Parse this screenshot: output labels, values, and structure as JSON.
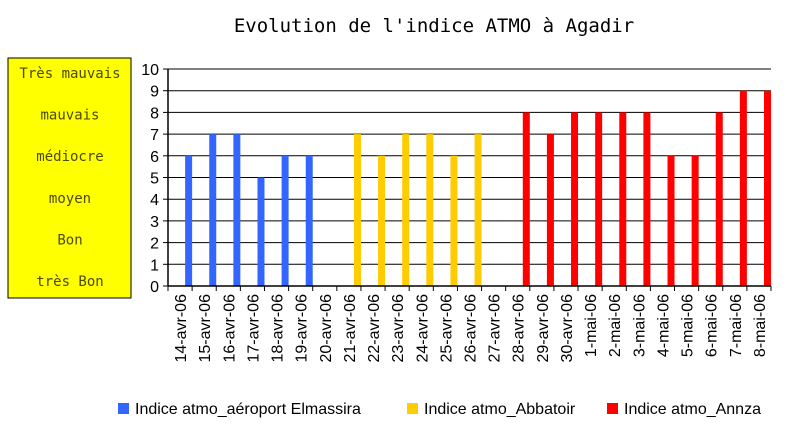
{
  "chart_data": {
    "type": "bar",
    "title": "Evolution de l'indice ATMO à Agadir",
    "xlabel": "",
    "ylabel": "",
    "ylim": [
      0,
      10
    ],
    "yticks": [
      "0",
      "1",
      "2",
      "3",
      "4",
      "5",
      "6",
      "7",
      "8",
      "9",
      "10"
    ],
    "grid": true,
    "legend_position": "bottom",
    "quality_scale": [
      "Très mauvais",
      "mauvais",
      "médiocre",
      "moyen",
      "Bon",
      "très Bon"
    ],
    "quality_box_color": "#ffff00",
    "categories": [
      "14-avr-06",
      "15-avr-06",
      "16-avr-06",
      "17-avr-06",
      "18-avr-06",
      "19-avr-06",
      "20-avr-06",
      "21-avr-06",
      "22-avr-06",
      "23-avr-06",
      "24-avr-06",
      "25-avr-06",
      "26-avr-06",
      "27-avr-06",
      "28-avr-06",
      "29-avr-06",
      "30-avr-06",
      "1-mai-06",
      "2-mai-06",
      "3-mai-06",
      "4-mai-06",
      "5-mai-06",
      "6-mai-06",
      "7-mai-06",
      "8-mai-06"
    ],
    "series": [
      {
        "name": "Indice atmo_aéroport Elmassira",
        "color": "#3366ff",
        "values": [
          6,
          7,
          7,
          5,
          6,
          6,
          null,
          null,
          null,
          null,
          null,
          null,
          null,
          null,
          null,
          null,
          null,
          null,
          null,
          null,
          null,
          null,
          null,
          null,
          null
        ]
      },
      {
        "name": "Indice atmo_Abbatoir",
        "color": "#ffcc00",
        "values": [
          null,
          null,
          null,
          null,
          null,
          null,
          null,
          7,
          6,
          7,
          7,
          6,
          7,
          null,
          null,
          null,
          null,
          null,
          null,
          null,
          null,
          null,
          null,
          null,
          null
        ]
      },
      {
        "name": "Indice atmo_Annza",
        "color": "#ff0000",
        "values": [
          null,
          null,
          null,
          null,
          null,
          null,
          null,
          null,
          null,
          null,
          null,
          null,
          null,
          null,
          8,
          7,
          8,
          8,
          8,
          8,
          6,
          6,
          8,
          9,
          9
        ]
      }
    ]
  }
}
